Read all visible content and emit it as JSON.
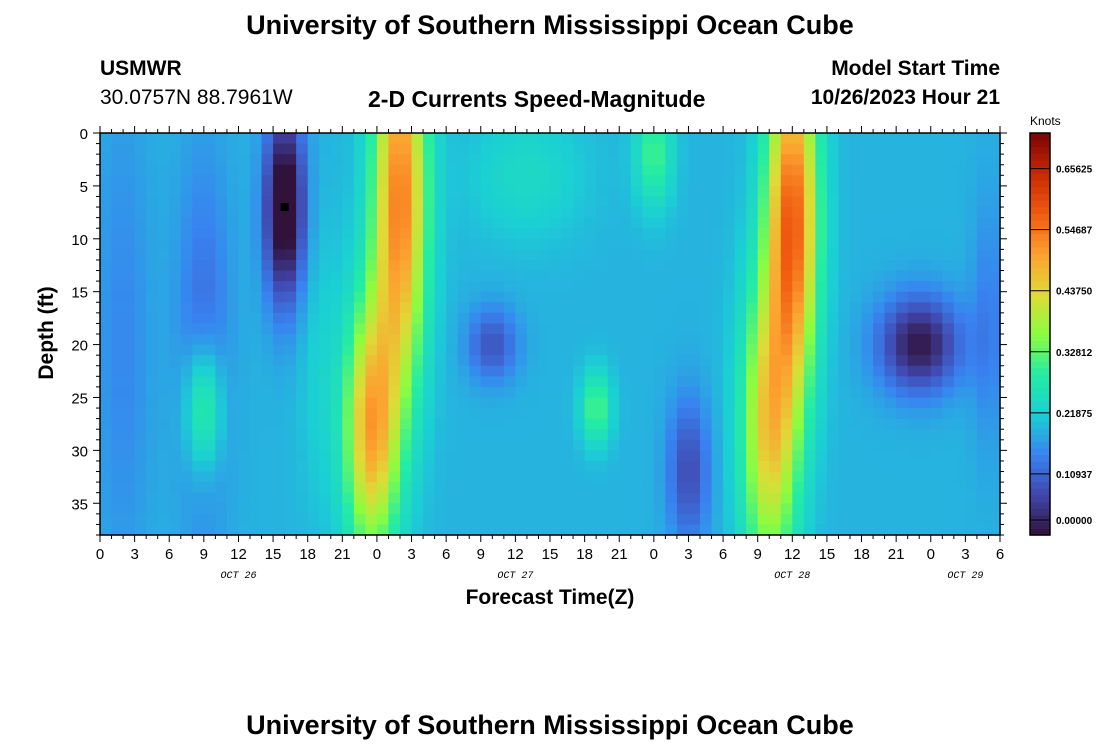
{
  "header": {
    "title": "University of Southern Mississippi Ocean Cube",
    "station": "USMWR",
    "coords": "30.0757N  88.7961W",
    "subtitle": "2-D Currents Speed-Magnitude",
    "model_start_label": "Model Start Time",
    "model_start_value": "10/26/2023 Hour 21"
  },
  "footer": {
    "title": "University of Southern Mississippi Ocean Cube"
  },
  "colors": {
    "background": "#ffffff",
    "marker": "#000000"
  },
  "chart_data": {
    "type": "heatmap",
    "title": "2-D Currents Speed-Magnitude",
    "xlabel": "Forecast Time(Z)",
    "ylabel": "Depth (ft)",
    "x_unit": "hours from Oct 26 00Z",
    "xlim": [
      0,
      78
    ],
    "ylim": [
      38,
      0
    ],
    "x_ticks": [
      0,
      3,
      6,
      9,
      12,
      15,
      18,
      21,
      24,
      27,
      30,
      33,
      36,
      39,
      42,
      45,
      48,
      51,
      54,
      57,
      60,
      63,
      66,
      69,
      72,
      75,
      78
    ],
    "x_tick_labels": [
      "0",
      "3",
      "6",
      "9",
      "12",
      "15",
      "18",
      "21",
      "0",
      "3",
      "6",
      "9",
      "12",
      "15",
      "18",
      "21",
      "0",
      "3",
      "6",
      "9",
      "12",
      "15",
      "18",
      "21",
      "0",
      "3",
      "6"
    ],
    "y_ticks": [
      0,
      5,
      10,
      15,
      20,
      25,
      30,
      35
    ],
    "y_tick_labels": [
      "0",
      "5",
      "10",
      "15",
      "20",
      "25",
      "30",
      "35"
    ],
    "date_labels": [
      {
        "text": "OCT 26",
        "x": 12
      },
      {
        "text": "OCT 27",
        "x": 36
      },
      {
        "text": "OCT 28",
        "x": 60
      },
      {
        "text": "OCT 29",
        "x": 75
      }
    ],
    "colorbar": {
      "label": "Knots",
      "range": [
        0,
        0.72
      ],
      "tick_values": [
        0.0,
        0.109375,
        0.21875,
        0.328125,
        0.4375,
        0.546875,
        0.65625
      ],
      "tick_labels": [
        "0.00000",
        "0.10937",
        "0.21875",
        "0.32812",
        "0.43750",
        "0.54687",
        "0.65625"
      ]
    },
    "marker": {
      "x": 16,
      "y": 7
    },
    "grid": false,
    "features": [
      {
        "name": "low-band-9",
        "t": 9,
        "d": 20,
        "st": 2.4,
        "sd": 18,
        "a": -0.07
      },
      {
        "name": "low-core-16",
        "t": 16,
        "d": 7,
        "st": 1.7,
        "sd": 9,
        "a": -0.24
      },
      {
        "name": "high-9",
        "t": 9,
        "d": 26,
        "st": 1.6,
        "sd": 6,
        "a": 0.15
      },
      {
        "name": "high-27-top",
        "t": 26,
        "d": 6,
        "st": 2.3,
        "sd": 18,
        "a": 0.35
      },
      {
        "name": "high-27-bot",
        "t": 23.5,
        "d": 28,
        "st": 2.3,
        "sd": 12,
        "a": 0.3
      },
      {
        "name": "high-56-top",
        "t": 60,
        "d": 8,
        "st": 2.2,
        "sd": 16,
        "a": 0.38
      },
      {
        "name": "high-56-bot",
        "t": 58,
        "d": 28,
        "st": 2.4,
        "sd": 14,
        "a": 0.26
      },
      {
        "name": "low-34",
        "t": 34,
        "d": 20,
        "st": 2.2,
        "sd": 3.5,
        "a": -0.1
      },
      {
        "name": "low-69",
        "t": 71,
        "d": 20,
        "st": 3.5,
        "sd": 4.5,
        "a": -0.18
      },
      {
        "name": "high-43",
        "t": 43,
        "d": 26,
        "st": 1.3,
        "sd": 3.5,
        "a": 0.13
      },
      {
        "name": "high-48-top",
        "t": 48,
        "d": 2,
        "st": 1.6,
        "sd": 5,
        "a": 0.12
      },
      {
        "name": "low-51",
        "t": 51,
        "d": 32,
        "st": 1.8,
        "sd": 7,
        "a": -0.11
      },
      {
        "name": "green-36-top",
        "t": 37,
        "d": 4,
        "st": 5,
        "sd": 6,
        "a": 0.05
      },
      {
        "name": "low-3",
        "t": 2,
        "d": 20,
        "st": 2.5,
        "sd": 25,
        "a": -0.04
      },
      {
        "name": "low-77",
        "t": 77,
        "d": 18,
        "st": 1.5,
        "sd": 12,
        "a": -0.05
      },
      {
        "name": "green-19",
        "t": 19,
        "d": 22,
        "st": 1.8,
        "sd": 14,
        "a": 0.03
      }
    ],
    "base_value": 0.19
  }
}
